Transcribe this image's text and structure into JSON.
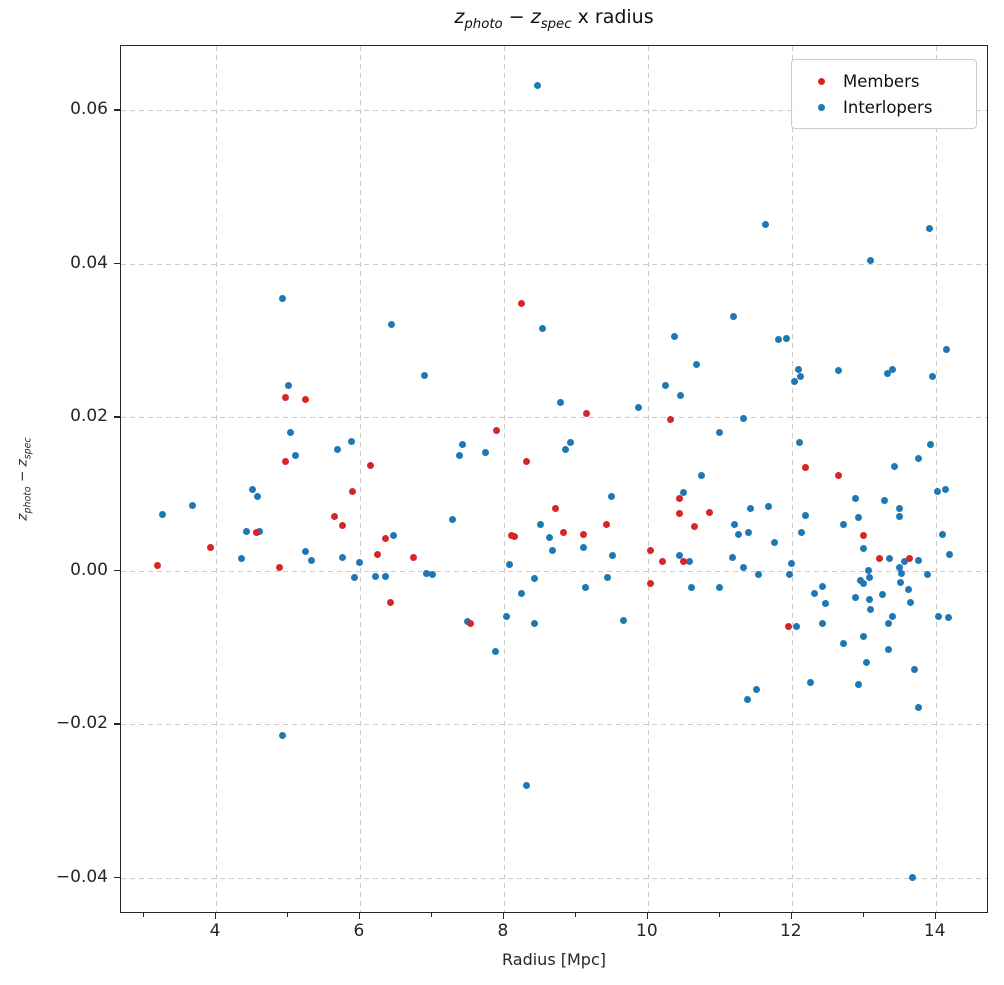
{
  "figure": {
    "title": {
      "z1": "z",
      "sub1": "photo",
      "op": " − ",
      "z2": "z",
      "sub2": "spec",
      "suffix": " x radius"
    },
    "ylabel_parts": {
      "z1": "z",
      "sub1": "photo",
      "op": " − ",
      "z2": "z",
      "sub2": "spec"
    }
  },
  "chart_data": {
    "type": "scatter",
    "title": "z_photo − z_spec x radius",
    "xlabel": "Radius [Mpc]",
    "ylabel": "z_photo − z_spec",
    "xlim": [
      2.68,
      14.74
    ],
    "ylim": [
      -0.0447,
      0.0684
    ],
    "grid": true,
    "legend_position": "upper right",
    "x_ticks": [
      4,
      6,
      8,
      10,
      12,
      14
    ],
    "x_tick_labels": [
      "4",
      "6",
      "8",
      "10",
      "12",
      "14"
    ],
    "x_minor_ticks": [
      3,
      5,
      7,
      9,
      11,
      13
    ],
    "y_ticks": [
      0.06,
      0.04,
      0.02,
      0.0,
      -0.02,
      -0.04
    ],
    "y_tick_labels": [
      "0.06",
      "0.04",
      "0.02",
      "0.00",
      "−0.02",
      "−0.04"
    ],
    "series": [
      {
        "name": "Members",
        "color": "#d62728",
        "points": [
          [
            4.96,
            0.0226
          ],
          [
            5.25,
            0.0224
          ],
          [
            8.24,
            0.0348
          ],
          [
            9.15,
            0.0205
          ],
          [
            10.31,
            0.0197
          ],
          [
            7.9,
            0.0183
          ],
          [
            4.97,
            0.0143
          ],
          [
            8.31,
            0.0143
          ],
          [
            6.14,
            0.0137
          ],
          [
            12.19,
            0.0135
          ],
          [
            12.65,
            0.0124
          ],
          [
            5.9,
            0.0103
          ],
          [
            10.44,
            0.0095
          ],
          [
            8.71,
            0.0082
          ],
          [
            10.85,
            0.0076
          ],
          [
            10.44,
            0.0075
          ],
          [
            5.65,
            0.0071
          ],
          [
            9.43,
            0.006
          ],
          [
            5.76,
            0.0059
          ],
          [
            10.65,
            0.0058
          ],
          [
            4.56,
            0.005
          ],
          [
            8.83,
            0.005
          ],
          [
            9.1,
            0.0047
          ],
          [
            13.0,
            0.0046
          ],
          [
            8.1,
            0.0046
          ],
          [
            8.15,
            0.0045
          ],
          [
            6.36,
            0.0042
          ],
          [
            3.92,
            0.003
          ],
          [
            10.03,
            0.0027
          ],
          [
            6.25,
            0.0021
          ],
          [
            6.75,
            0.0017
          ],
          [
            13.22,
            0.0016
          ],
          [
            13.64,
            0.0016
          ],
          [
            10.21,
            0.0012
          ],
          [
            10.5,
            0.0012
          ],
          [
            3.19,
            0.0007
          ],
          [
            4.88,
            0.0004
          ],
          [
            10.03,
            -0.0017
          ],
          [
            6.42,
            -0.0041
          ],
          [
            7.53,
            -0.0069
          ],
          [
            11.96,
            -0.0072
          ]
        ]
      },
      {
        "name": "Interlopers",
        "color": "#1f77b4",
        "points": [
          [
            8.47,
            0.0633
          ],
          [
            11.63,
            0.0452
          ],
          [
            13.92,
            0.0446
          ],
          [
            13.1,
            0.0404
          ],
          [
            4.92,
            0.0355
          ],
          [
            11.19,
            0.0331
          ],
          [
            6.44,
            0.0321
          ],
          [
            8.54,
            0.0316
          ],
          [
            10.37,
            0.0305
          ],
          [
            11.81,
            0.0302
          ],
          [
            11.93,
            0.0303
          ],
          [
            14.15,
            0.0289
          ],
          [
            10.68,
            0.0269
          ],
          [
            12.1,
            0.0263
          ],
          [
            12.65,
            0.0261
          ],
          [
            13.33,
            0.0257
          ],
          [
            13.4,
            0.0262
          ],
          [
            6.89,
            0.0255
          ],
          [
            13.96,
            0.0253
          ],
          [
            12.04,
            0.0247
          ],
          [
            12.12,
            0.0253
          ],
          [
            5.01,
            0.0241
          ],
          [
            10.25,
            0.0242
          ],
          [
            10.46,
            0.0229
          ],
          [
            8.78,
            0.022
          ],
          [
            9.87,
            0.0213
          ],
          [
            11.33,
            0.0199
          ],
          [
            11.0,
            0.0181
          ],
          [
            5.03,
            0.018
          ],
          [
            5.88,
            0.0169
          ],
          [
            12.11,
            0.0167
          ],
          [
            13.93,
            0.0165
          ],
          [
            8.92,
            0.0167
          ],
          [
            8.86,
            0.0158
          ],
          [
            5.69,
            0.0158
          ],
          [
            7.75,
            0.0154
          ],
          [
            5.11,
            0.015
          ],
          [
            7.39,
            0.015
          ],
          [
            7.42,
            0.0165
          ],
          [
            13.76,
            0.0146
          ],
          [
            13.43,
            0.0136
          ],
          [
            10.74,
            0.0124
          ],
          [
            4.51,
            0.0106
          ],
          [
            14.03,
            0.0103
          ],
          [
            14.13,
            0.0106
          ],
          [
            10.5,
            0.0102
          ],
          [
            9.49,
            0.0097
          ],
          [
            4.58,
            0.0097
          ],
          [
            12.88,
            0.0094
          ],
          [
            13.29,
            0.0092
          ],
          [
            3.68,
            0.0085
          ],
          [
            11.68,
            0.0084
          ],
          [
            13.49,
            0.0081
          ],
          [
            11.42,
            0.0081
          ],
          [
            12.19,
            0.0072
          ],
          [
            3.26,
            0.0073
          ],
          [
            12.92,
            0.0069
          ],
          [
            13.5,
            0.0071
          ],
          [
            7.28,
            0.0067
          ],
          [
            11.21,
            0.0061
          ],
          [
            12.72,
            0.0061
          ],
          [
            8.51,
            0.006
          ],
          [
            4.42,
            0.0051
          ],
          [
            4.6,
            0.0052
          ],
          [
            11.4,
            0.005
          ],
          [
            12.14,
            0.005
          ],
          [
            11.26,
            0.0047
          ],
          [
            14.1,
            0.0048
          ],
          [
            6.46,
            0.0046
          ],
          [
            8.64,
            0.0043
          ],
          [
            11.76,
            0.0037
          ],
          [
            9.1,
            0.0031
          ],
          [
            13.0,
            0.0029
          ],
          [
            8.67,
            0.0027
          ],
          [
            5.24,
            0.0025
          ],
          [
            10.44,
            0.002
          ],
          [
            14.19,
            0.0022
          ],
          [
            9.51,
            0.002
          ],
          [
            11.17,
            0.0018
          ],
          [
            5.76,
            0.0017
          ],
          [
            13.36,
            0.0016
          ],
          [
            4.35,
            0.0016
          ],
          [
            13.76,
            0.0013
          ],
          [
            5.33,
            0.0013
          ],
          [
            10.58,
            0.0012
          ],
          [
            13.56,
            0.0012
          ],
          [
            5.99,
            0.0011
          ],
          [
            12.0,
            0.001
          ],
          [
            8.08,
            0.0008
          ],
          [
            11.33,
            0.0004
          ],
          [
            13.49,
            0.0004
          ],
          [
            13.06,
            0.0
          ],
          [
            13.53,
            -0.0003
          ],
          [
            6.93,
            -0.0003
          ],
          [
            7.01,
            -0.0004
          ],
          [
            13.89,
            -0.0004
          ],
          [
            11.54,
            -0.0004
          ],
          [
            11.97,
            -0.0005
          ],
          [
            6.21,
            -0.0007
          ],
          [
            6.35,
            -0.0007
          ],
          [
            5.93,
            -0.0008
          ],
          [
            9.44,
            -0.0008
          ],
          [
            13.08,
            -0.0009
          ],
          [
            8.42,
            -0.001
          ],
          [
            12.96,
            -0.0012
          ],
          [
            13.51,
            -0.0015
          ],
          [
            13.0,
            -0.0017
          ],
          [
            12.43,
            -0.002
          ],
          [
            9.13,
            -0.0022
          ],
          [
            10.61,
            -0.0022
          ],
          [
            10.99,
            -0.0022
          ],
          [
            13.62,
            -0.0024
          ],
          [
            8.25,
            -0.003
          ],
          [
            12.32,
            -0.003
          ],
          [
            13.26,
            -0.0031
          ],
          [
            12.89,
            -0.0035
          ],
          [
            13.08,
            -0.0037
          ],
          [
            13.65,
            -0.0041
          ],
          [
            12.47,
            -0.0043
          ],
          [
            13.09,
            -0.005
          ],
          [
            8.04,
            -0.0059
          ],
          [
            13.4,
            -0.0059
          ],
          [
            14.04,
            -0.0059
          ],
          [
            14.18,
            -0.0061
          ],
          [
            9.66,
            -0.0065
          ],
          [
            7.5,
            -0.0066
          ],
          [
            13.35,
            -0.0068
          ],
          [
            8.43,
            -0.0069
          ],
          [
            12.43,
            -0.0068
          ],
          [
            12.06,
            -0.0073
          ],
          [
            12.72,
            -0.0095
          ],
          [
            13.0,
            -0.0085
          ],
          [
            13.35,
            -0.0102
          ],
          [
            7.88,
            -0.0105
          ],
          [
            13.04,
            -0.0119
          ],
          [
            13.71,
            -0.0128
          ],
          [
            12.26,
            -0.0146
          ],
          [
            12.92,
            -0.0148
          ],
          [
            11.51,
            -0.0154
          ],
          [
            11.39,
            -0.0167
          ],
          [
            13.76,
            -0.0178
          ],
          [
            4.93,
            -0.0214
          ],
          [
            8.31,
            -0.0279
          ],
          [
            13.68,
            -0.0399
          ]
        ]
      }
    ]
  }
}
